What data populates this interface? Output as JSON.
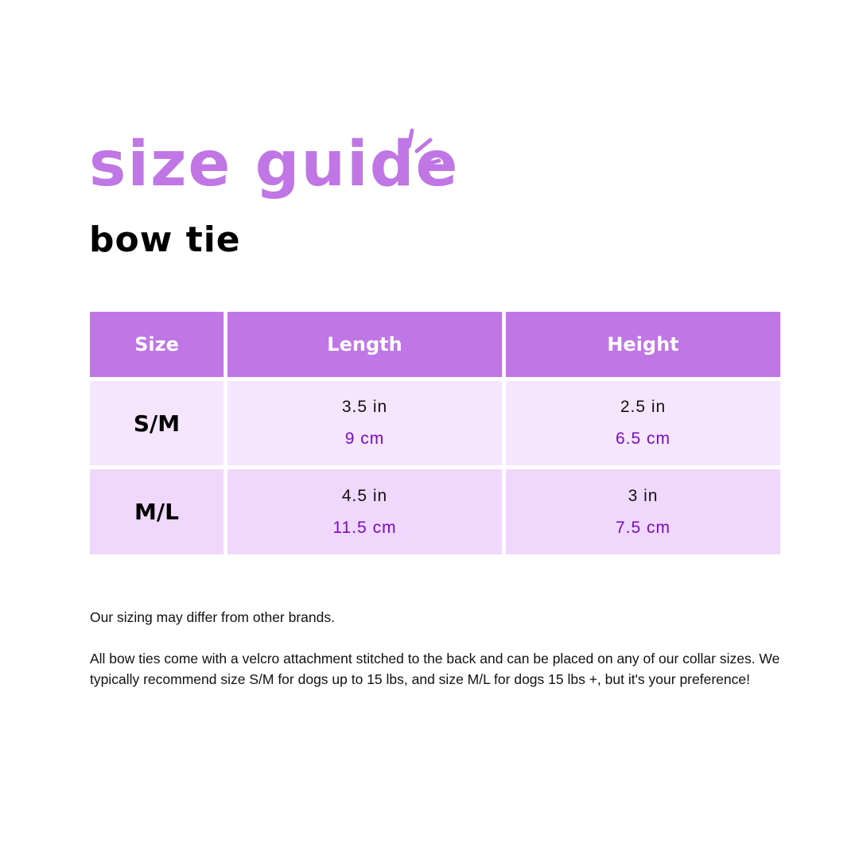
{
  "title": "size guide",
  "subtitle": "bow tie",
  "colors": {
    "accent": "#c077e5",
    "row_light": "#f6e6fd",
    "row_mid": "#f0d8fc",
    "metric_text": "#7a0bc0"
  },
  "table": {
    "headers": [
      "Size",
      "Length",
      "Height"
    ],
    "rows": [
      {
        "size": "S/M",
        "length_in": "3.5 in",
        "length_cm": "9 cm",
        "height_in": "2.5 in",
        "height_cm": "6.5 cm"
      },
      {
        "size": "M/L",
        "length_in": "4.5 in",
        "length_cm": "11.5 cm",
        "height_in": "3 in",
        "height_cm": "7.5 cm"
      }
    ]
  },
  "notes": {
    "line1": "Our sizing may differ from other brands.",
    "line2": "All bow ties come with a velcro attachment stitched to the back and can be placed on any of our collar sizes.  We typically recommend size S/M for dogs up to 15 lbs, and size M/L for dogs 15 lbs +, but it's your preference!"
  }
}
